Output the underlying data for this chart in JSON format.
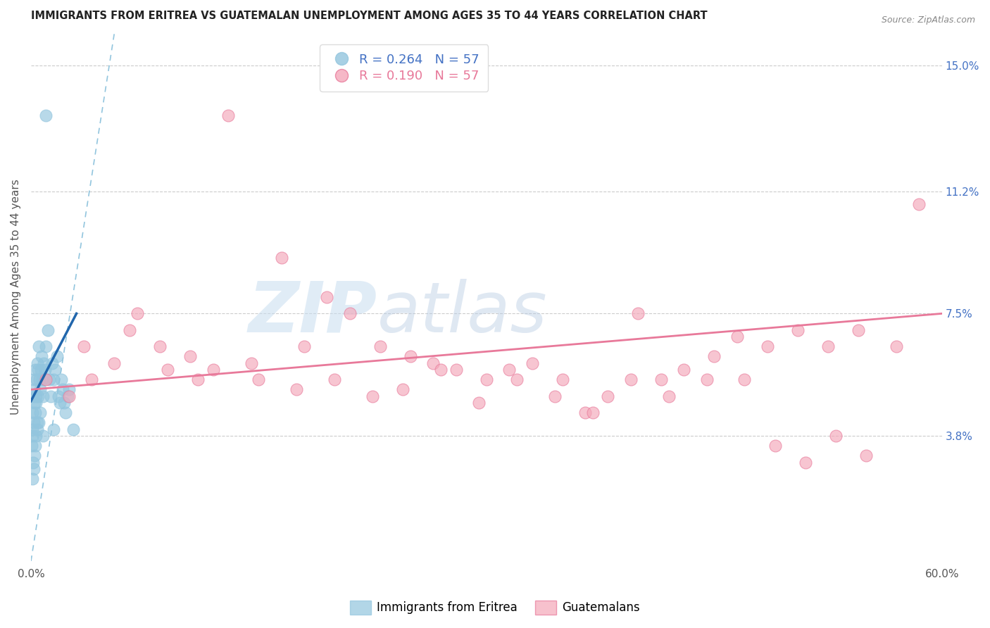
{
  "title": "IMMIGRANTS FROM ERITREA VS GUATEMALAN UNEMPLOYMENT AMONG AGES 35 TO 44 YEARS CORRELATION CHART",
  "source": "Source: ZipAtlas.com",
  "ylabel": "Unemployment Among Ages 35 to 44 years",
  "right_yticks": [
    3.8,
    7.5,
    11.2,
    15.0
  ],
  "right_ytick_labels": [
    "3.8%",
    "7.5%",
    "11.2%",
    "15.0%"
  ],
  "legend_1_r": "R = 0.264",
  "legend_1_n": "N = 57",
  "legend_2_r": "R = 0.190",
  "legend_2_n": "N = 57",
  "blue_color": "#92c5de",
  "pink_color": "#f4a7b9",
  "blue_edge_color": "#92c5de",
  "pink_edge_color": "#e8799a",
  "blue_line_color": "#2166ac",
  "pink_line_color": "#e8799a",
  "dashed_line_color": "#92c5de",
  "watermark_zip": "ZIP",
  "watermark_atlas": "atlas",
  "xlim": [
    0,
    60
  ],
  "ylim": [
    0,
    16
  ],
  "ygrid_lines": [
    3.8,
    7.5,
    11.2,
    15.0
  ],
  "blue_scatter_x": [
    0.05,
    0.08,
    0.1,
    0.12,
    0.15,
    0.18,
    0.2,
    0.22,
    0.25,
    0.28,
    0.3,
    0.32,
    0.35,
    0.38,
    0.4,
    0.42,
    0.45,
    0.48,
    0.5,
    0.55,
    0.6,
    0.65,
    0.7,
    0.75,
    0.8,
    0.85,
    0.9,
    0.95,
    1.0,
    1.1,
    1.2,
    1.3,
    1.4,
    1.5,
    1.6,
    1.7,
    1.8,
    1.9,
    2.0,
    2.1,
    2.2,
    2.3,
    2.4,
    2.5,
    0.1,
    0.15,
    0.2,
    0.25,
    0.3,
    0.35,
    0.4,
    0.5,
    0.6,
    0.8,
    1.0,
    1.5,
    2.8
  ],
  "blue_scatter_y": [
    3.5,
    4.0,
    3.8,
    4.5,
    5.0,
    4.2,
    5.5,
    4.8,
    5.2,
    5.8,
    4.5,
    5.0,
    4.8,
    5.5,
    6.0,
    4.2,
    5.8,
    5.0,
    6.5,
    5.5,
    5.2,
    5.8,
    6.2,
    5.5,
    5.0,
    6.0,
    5.5,
    5.8,
    6.5,
    7.0,
    5.5,
    5.0,
    6.0,
    5.5,
    5.8,
    6.2,
    5.0,
    4.8,
    5.5,
    5.2,
    4.8,
    4.5,
    5.0,
    5.2,
    2.5,
    3.0,
    2.8,
    3.2,
    3.5,
    3.8,
    4.0,
    4.2,
    4.5,
    3.8,
    13.5,
    4.0,
    4.0
  ],
  "pink_scatter_x": [
    1.0,
    2.5,
    3.5,
    5.5,
    7.0,
    9.0,
    11.0,
    13.0,
    14.5,
    16.5,
    18.0,
    19.5,
    21.0,
    23.0,
    25.0,
    26.5,
    28.0,
    30.0,
    31.5,
    33.0,
    35.0,
    36.5,
    38.0,
    40.0,
    41.5,
    43.0,
    45.0,
    47.0,
    49.0,
    51.0,
    53.0,
    55.0,
    57.0,
    58.5,
    4.0,
    6.5,
    8.5,
    10.5,
    12.0,
    15.0,
    17.5,
    20.0,
    22.5,
    24.5,
    27.0,
    29.5,
    32.0,
    34.5,
    37.0,
    39.5,
    42.0,
    44.5,
    46.5,
    48.5,
    50.5,
    52.5,
    54.5
  ],
  "pink_scatter_y": [
    5.5,
    5.0,
    6.5,
    6.0,
    7.5,
    5.8,
    5.5,
    13.5,
    6.0,
    9.2,
    6.5,
    8.0,
    7.5,
    6.5,
    6.2,
    6.0,
    5.8,
    5.5,
    5.8,
    6.0,
    5.5,
    4.5,
    5.0,
    7.5,
    5.5,
    5.8,
    6.2,
    5.5,
    3.5,
    3.0,
    3.8,
    3.2,
    6.5,
    10.8,
    5.5,
    7.0,
    6.5,
    6.2,
    5.8,
    5.5,
    5.2,
    5.5,
    5.0,
    5.2,
    5.8,
    4.8,
    5.5,
    5.0,
    4.5,
    5.5,
    5.0,
    5.5,
    6.8,
    6.5,
    7.0,
    6.5,
    7.0
  ],
  "blue_reg_x0": 0.0,
  "blue_reg_y0": 4.85,
  "blue_reg_x1": 3.0,
  "blue_reg_y1": 7.5,
  "pink_reg_x0": 0.0,
  "pink_reg_y0": 5.2,
  "pink_reg_x1": 60.0,
  "pink_reg_y1": 7.5,
  "dashed_x0": 0.0,
  "dashed_y0": 0.0,
  "dashed_x1": 5.5,
  "dashed_y1": 16.0
}
